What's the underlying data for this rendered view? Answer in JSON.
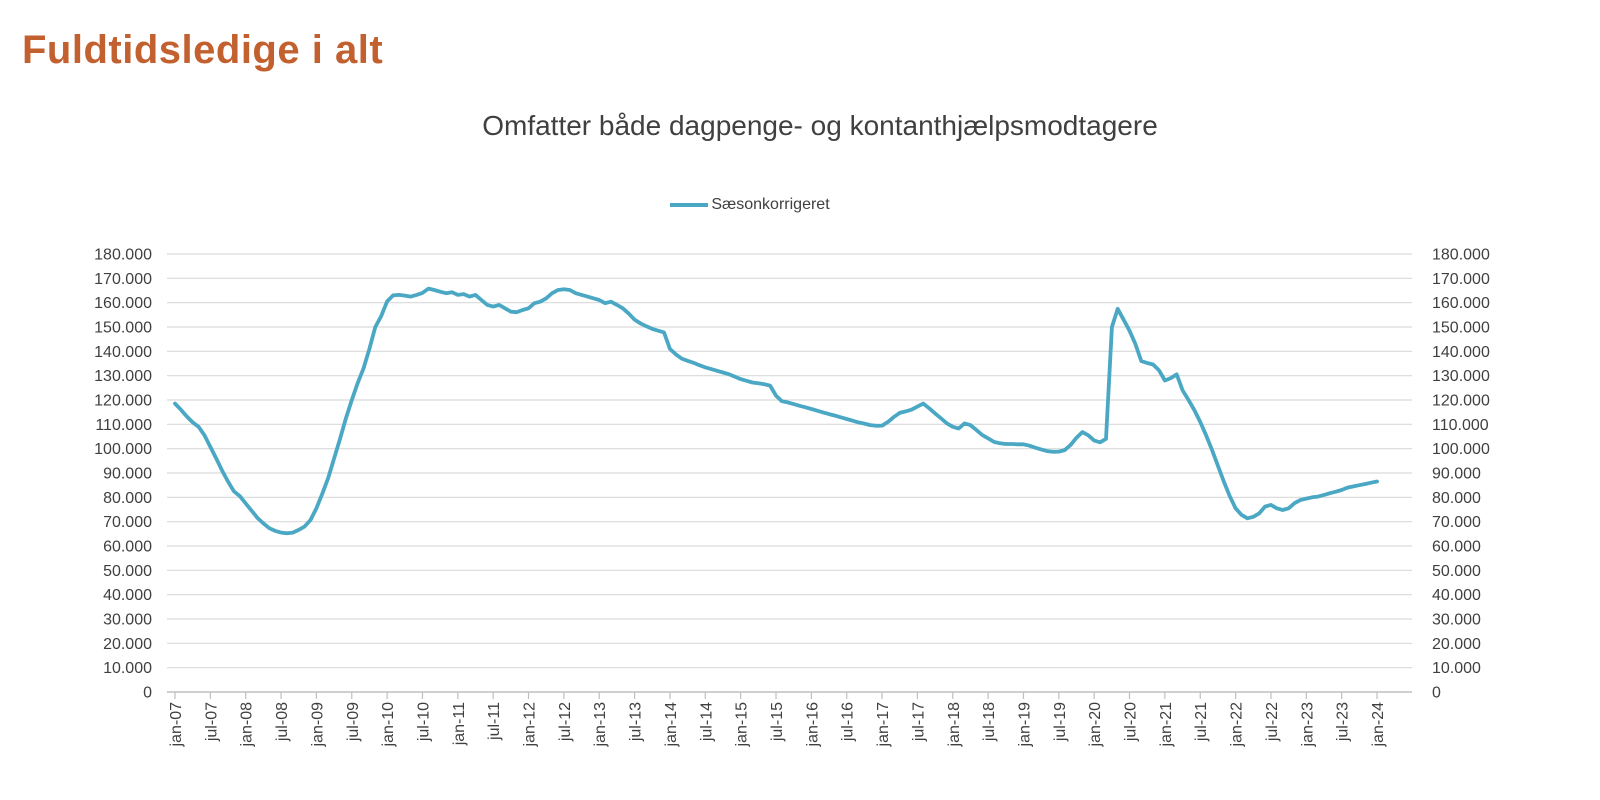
{
  "page": {
    "title": "Fuldtidsledige i alt"
  },
  "theme": {
    "title_color": "#C2612F",
    "text_color": "#404040",
    "gridline_color": "#D9D9D9",
    "axis_color": "#BFBFBF",
    "series_color": "#4AA8C4",
    "background": "#FFFFFF"
  },
  "chart": {
    "subtitle": "Omfatter både dagpenge- og kontanthjælpsmodtagere",
    "legend": {
      "label": "Sæsonkorrigeret"
    }
  },
  "chart_data": {
    "type": "line",
    "title": "Omfatter både dagpenge- og kontanthjælpsmodtagere",
    "legend_entries": [
      "Sæsonkorrigeret"
    ],
    "legend_position": "top-center",
    "grid": "horizontal",
    "x_start": "jan-07",
    "x_end": "jan-24",
    "x_freq": "monthly",
    "x_tick_labels": [
      "jan-07",
      "jul-07",
      "jan-08",
      "jul-08",
      "jan-09",
      "jul-09",
      "jan-10",
      "jul-10",
      "jan-11",
      "jul-11",
      "jan-12",
      "jul-12",
      "jan-13",
      "jul-13",
      "jan-14",
      "jul-14",
      "jan-15",
      "jul-15",
      "jan-16",
      "jul-16",
      "jan-17",
      "jul-17",
      "jan-18",
      "jul-18",
      "jan-19",
      "jul-19",
      "jan-20",
      "jul-20",
      "jan-21",
      "jul-21",
      "jan-22",
      "jul-22",
      "jan-23",
      "jul-23",
      "jan-24"
    ],
    "ylim": [
      0,
      180000
    ],
    "y_tick_step": 10000,
    "y_tick_labels": [
      "0",
      "10.000",
      "20.000",
      "30.000",
      "40.000",
      "50.000",
      "60.000",
      "70.000",
      "80.000",
      "90.000",
      "100.000",
      "110.000",
      "120.000",
      "130.000",
      "140.000",
      "150.000",
      "160.000",
      "170.000",
      "180.000"
    ],
    "y_axis_sides": [
      "left",
      "right"
    ],
    "series": [
      {
        "name": "Sæsonkorrigeret",
        "color": "#4AA8C4",
        "values": [
          118500,
          116000,
          113200,
          110800,
          109000,
          105500,
          100700,
          96000,
          91000,
          86500,
          82500,
          80500,
          77500,
          74500,
          71500,
          69300,
          67300,
          66200,
          65500,
          65200,
          65500,
          66600,
          68000,
          70700,
          75500,
          81500,
          88000,
          96000,
          104000,
          112500,
          120000,
          127000,
          133000,
          141000,
          150000,
          154500,
          160500,
          163000,
          163200,
          162900,
          162500,
          163200,
          164000,
          165800,
          165200,
          164500,
          163900,
          164300,
          163200,
          163500,
          162500,
          163200,
          161100,
          159100,
          158400,
          159100,
          157700,
          156300,
          156100,
          157000,
          157700,
          159800,
          160400,
          161800,
          163900,
          165200,
          165500,
          165200,
          163900,
          163200,
          162500,
          161800,
          161100,
          159800,
          160400,
          159100,
          157700,
          155500,
          153000,
          151500,
          150300,
          149200,
          148500,
          147800,
          141000,
          138800,
          137000,
          136100,
          135300,
          134300,
          133400,
          132700,
          132000,
          131300,
          130600,
          129600,
          128600,
          127900,
          127200,
          126900,
          126500,
          125900,
          121800,
          119500,
          119000,
          118300,
          117600,
          117000,
          116300,
          115600,
          114900,
          114200,
          113600,
          112900,
          112200,
          111500,
          110800,
          110300,
          109700,
          109400,
          109500,
          111000,
          113000,
          114700,
          115300,
          116000,
          117300,
          118500,
          116600,
          114500,
          112500,
          110400,
          109000,
          108300,
          110400,
          109700,
          107700,
          105600,
          104200,
          102800,
          102200,
          101900,
          101900,
          101800,
          101800,
          101200,
          100400,
          99700,
          99000,
          98700,
          98800,
          99400,
          101500,
          104500,
          106800,
          105500,
          103300,
          102600,
          104000,
          150000,
          157500,
          153000,
          148500,
          143000,
          136000,
          135200,
          134600,
          132200,
          128000,
          129000,
          130500,
          124000,
          120000,
          115900,
          111000,
          105500,
          99500,
          93000,
          86500,
          80500,
          75500,
          72800,
          71400,
          72000,
          73400,
          76200,
          76900,
          75500,
          74800,
          75500,
          77600,
          78900,
          79500,
          80000,
          80300,
          81000,
          81700,
          82300,
          83000,
          84000,
          84500,
          85000,
          85500,
          86000,
          86500
        ]
      }
    ]
  }
}
